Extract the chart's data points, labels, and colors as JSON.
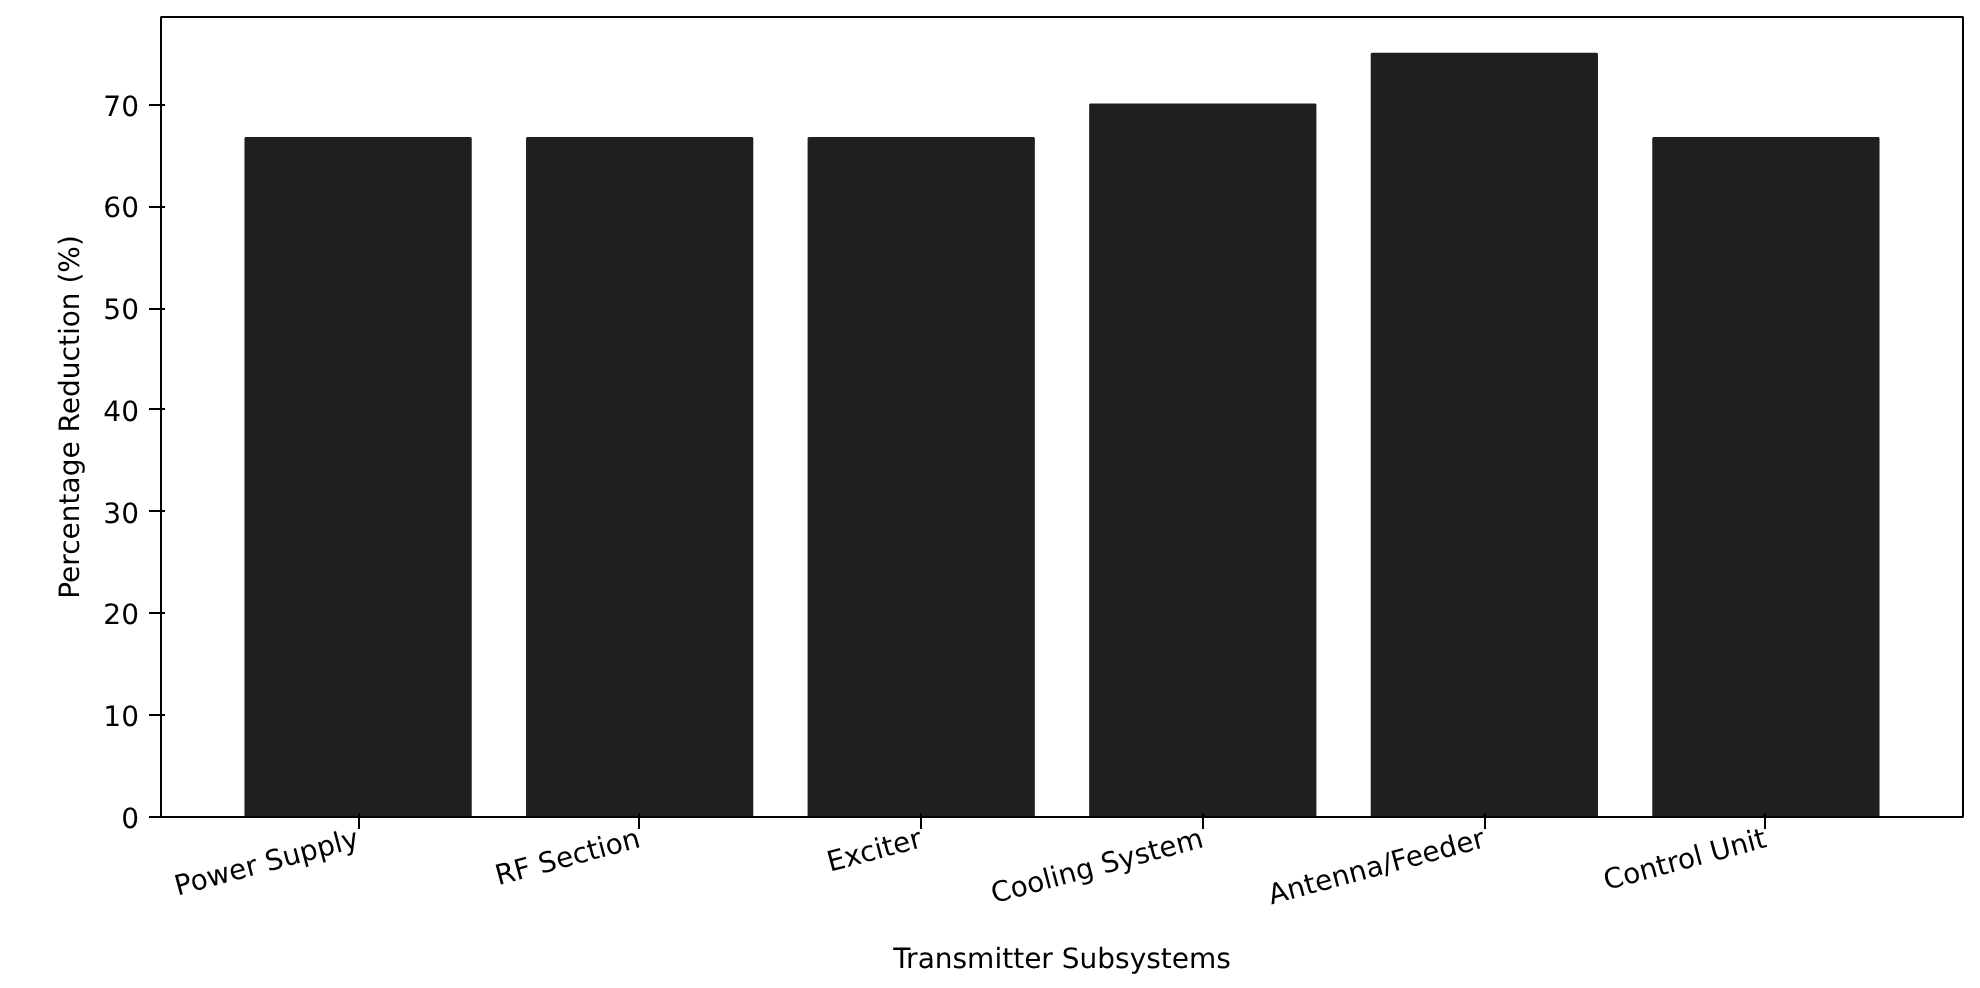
{
  "chart_data": {
    "type": "bar",
    "xlabel": "Transmitter Subsystems",
    "ylabel": "Percentage Reduction (%)",
    "categories": [
      "Power Supply",
      "RF Section",
      "Exciter",
      "Cooling System",
      "Antenna/Feeder",
      "Control Unit"
    ],
    "values": [
      66.7,
      66.7,
      66.7,
      70,
      75,
      66.7
    ],
    "color": "#1f1f1f",
    "ylim": [
      0,
      78.6
    ],
    "yticks": [
      0,
      10,
      20,
      30,
      40,
      50,
      60,
      70
    ],
    "grid": false
  }
}
